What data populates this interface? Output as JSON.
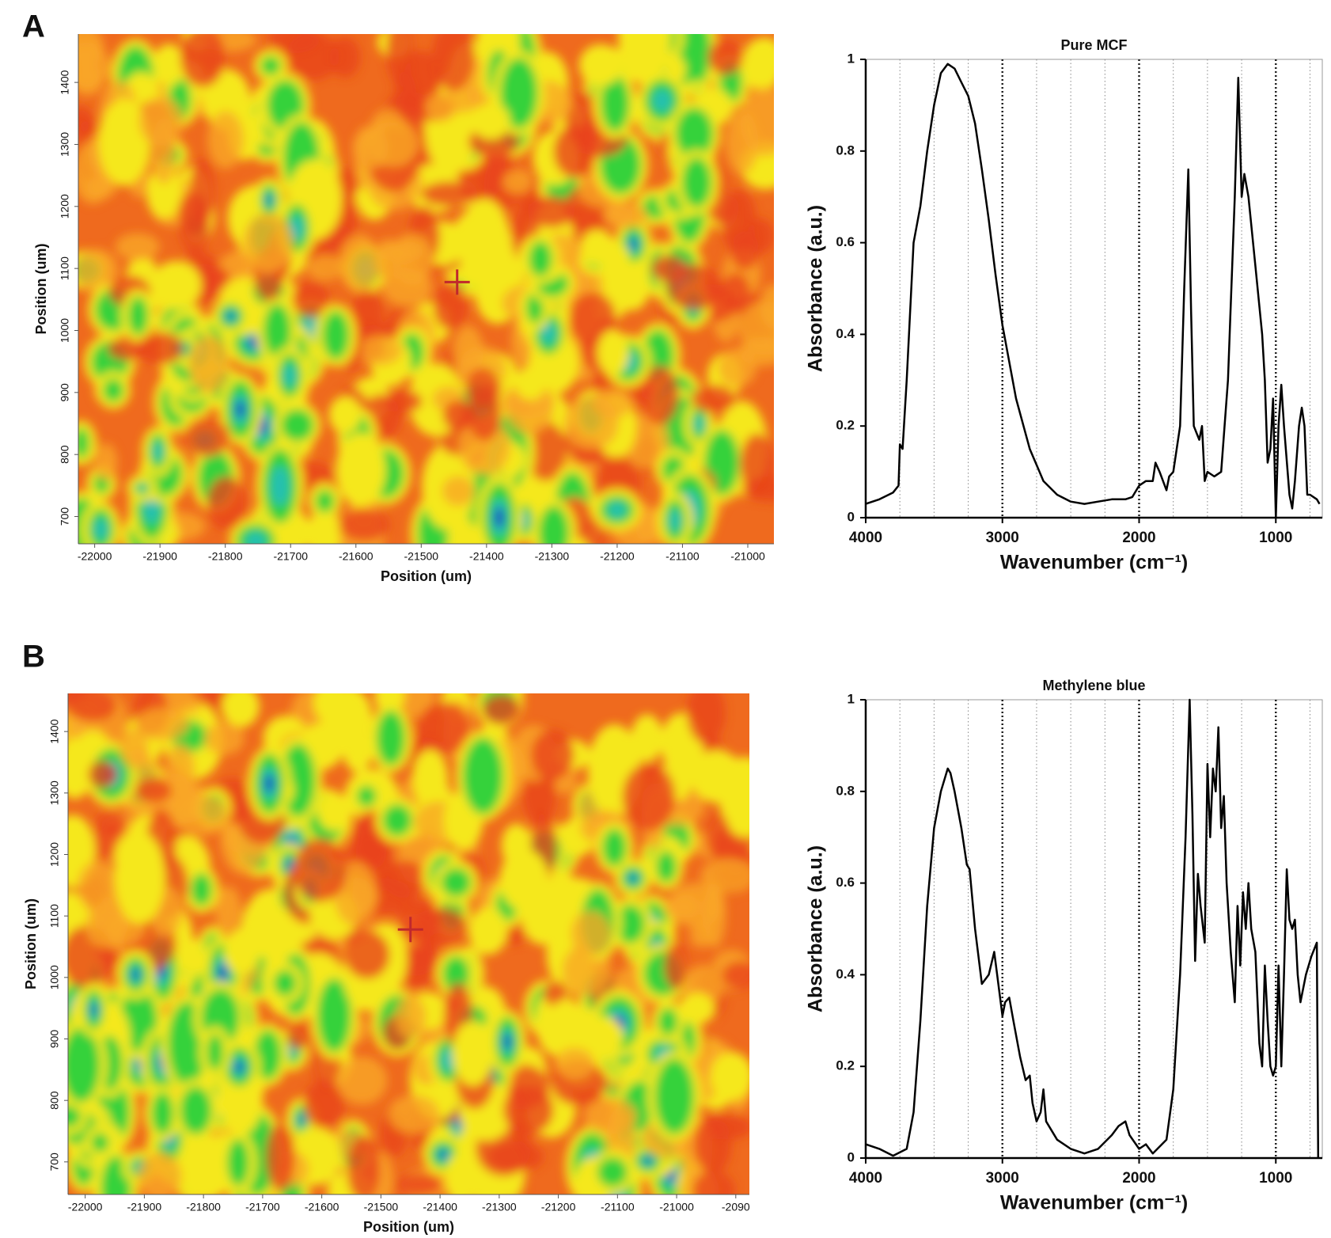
{
  "chart_data": [
    {
      "type": "heatmap",
      "panel": "A",
      "xlabel": "Position (um)",
      "ylabel": "Position (um)",
      "xlim": [
        -22025,
        -20960
      ],
      "ylim": [
        656,
        1478
      ],
      "xticks": [
        -22000,
        -21900,
        -21800,
        -21700,
        -21600,
        -21500,
        -21400,
        -21300,
        -21200,
        -21100,
        -21000
      ],
      "yticks": [
        700,
        800,
        900,
        1000,
        1100,
        1200,
        1300,
        1400
      ],
      "marker": {
        "x": -21445,
        "y": 1078,
        "color": "#c0282d"
      }
    },
    {
      "type": "line",
      "title": "Pure MCF",
      "xlabel": "Wavenumber (cm⁻¹)",
      "ylabel": "Absorbance (a.u.)",
      "color": "#000000",
      "grid": true,
      "xlim": [
        4000,
        660
      ],
      "ylim": [
        0,
        1
      ],
      "xticks": [
        4000,
        3000,
        2000,
        1000
      ],
      "yticks": [
        0,
        0.2,
        0.4,
        0.6,
        0.8,
        1
      ],
      "xminor": [
        3750,
        3500,
        3250,
        2750,
        2500,
        2250,
        1750,
        1500,
        1250,
        750
      ],
      "x": [
        4000,
        3900,
        3800,
        3760,
        3750,
        3730,
        3700,
        3650,
        3600,
        3550,
        3500,
        3450,
        3400,
        3350,
        3300,
        3250,
        3200,
        3150,
        3100,
        3050,
        3000,
        2900,
        2800,
        2700,
        2600,
        2500,
        2400,
        2300,
        2200,
        2100,
        2050,
        2000,
        1950,
        1900,
        1880,
        1850,
        1800,
        1780,
        1750,
        1700,
        1670,
        1640,
        1620,
        1600,
        1560,
        1540,
        1520,
        1500,
        1450,
        1400,
        1350,
        1300,
        1275,
        1250,
        1230,
        1200,
        1150,
        1100,
        1080,
        1060,
        1040,
        1020,
        1000,
        980,
        960,
        940,
        900,
        880,
        860,
        830,
        810,
        790,
        770,
        750,
        700,
        680
      ],
      "values": [
        0.03,
        0.04,
        0.055,
        0.07,
        0.16,
        0.15,
        0.3,
        0.6,
        0.68,
        0.8,
        0.9,
        0.97,
        0.99,
        0.98,
        0.95,
        0.92,
        0.86,
        0.76,
        0.65,
        0.53,
        0.42,
        0.26,
        0.15,
        0.08,
        0.05,
        0.035,
        0.03,
        0.035,
        0.04,
        0.04,
        0.045,
        0.07,
        0.08,
        0.08,
        0.12,
        0.1,
        0.06,
        0.09,
        0.1,
        0.2,
        0.5,
        0.76,
        0.45,
        0.2,
        0.17,
        0.2,
        0.08,
        0.1,
        0.09,
        0.1,
        0.3,
        0.7,
        0.96,
        0.7,
        0.75,
        0.7,
        0.55,
        0.4,
        0.3,
        0.12,
        0.15,
        0.26,
        0.0,
        0.2,
        0.29,
        0.2,
        0.05,
        0.02,
        0.08,
        0.2,
        0.24,
        0.2,
        0.05,
        0.05,
        0.04,
        0.03
      ]
    },
    {
      "type": "heatmap",
      "panel": "B",
      "xlabel": "Position (um)",
      "ylabel": "Position (um)",
      "xlim": [
        -22029,
        -20877
      ],
      "ylim": [
        647,
        1462
      ],
      "xticks": [
        -22000,
        -21900,
        -21800,
        -21700,
        -21600,
        -21500,
        -21400,
        -21300,
        -21200,
        -21100,
        -21000,
        {
          "value": -20900,
          "label": "-2090"
        }
      ],
      "yticks": [
        700,
        800,
        900,
        1000,
        1100,
        1200,
        1300,
        1400
      ],
      "marker": {
        "x": -21450,
        "y": 1078,
        "color": "#c0282d"
      }
    },
    {
      "type": "line",
      "title": "Methylene blue",
      "xlabel": "Wavenumber (cm⁻¹)",
      "ylabel": "Absorbance (a.u.)",
      "color": "#000000",
      "grid": true,
      "xlim": [
        4000,
        660
      ],
      "ylim": [
        0,
        1
      ],
      "xticks": [
        4000,
        3000,
        2000,
        1000
      ],
      "yticks": [
        0,
        0.2,
        0.4,
        0.6,
        0.8,
        1
      ],
      "xminor": [
        3750,
        3500,
        3250,
        2750,
        2500,
        2250,
        1750,
        1500,
        1250,
        750
      ],
      "x": [
        4000,
        3900,
        3800,
        3700,
        3650,
        3600,
        3550,
        3500,
        3450,
        3400,
        3380,
        3350,
        3300,
        3260,
        3240,
        3200,
        3150,
        3100,
        3060,
        3030,
        3000,
        2980,
        2950,
        2920,
        2870,
        2830,
        2800,
        2780,
        2750,
        2720,
        2700,
        2680,
        2600,
        2500,
        2400,
        2300,
        2200,
        2150,
        2100,
        2070,
        2000,
        1950,
        1900,
        1800,
        1750,
        1700,
        1660,
        1630,
        1610,
        1590,
        1570,
        1550,
        1520,
        1500,
        1480,
        1460,
        1440,
        1420,
        1400,
        1380,
        1360,
        1330,
        1300,
        1280,
        1260,
        1240,
        1220,
        1200,
        1180,
        1150,
        1120,
        1100,
        1080,
        1060,
        1040,
        1020,
        1000,
        980,
        960,
        940,
        920,
        900,
        880,
        860,
        840,
        820,
        780,
        740,
        700,
        690
      ],
      "values": [
        0.03,
        0.02,
        0.005,
        0.02,
        0.1,
        0.3,
        0.55,
        0.72,
        0.8,
        0.85,
        0.84,
        0.8,
        0.72,
        0.64,
        0.63,
        0.5,
        0.38,
        0.4,
        0.45,
        0.38,
        0.31,
        0.34,
        0.35,
        0.3,
        0.22,
        0.17,
        0.18,
        0.12,
        0.08,
        0.1,
        0.15,
        0.08,
        0.04,
        0.02,
        0.01,
        0.02,
        0.05,
        0.07,
        0.08,
        0.05,
        0.02,
        0.03,
        0.01,
        0.04,
        0.15,
        0.4,
        0.7,
        1.0,
        0.75,
        0.43,
        0.62,
        0.55,
        0.47,
        0.86,
        0.7,
        0.85,
        0.8,
        0.94,
        0.72,
        0.79,
        0.6,
        0.45,
        0.34,
        0.55,
        0.42,
        0.58,
        0.5,
        0.6,
        0.5,
        0.45,
        0.25,
        0.2,
        0.42,
        0.3,
        0.2,
        0.18,
        0.2,
        0.42,
        0.2,
        0.4,
        0.63,
        0.52,
        0.5,
        0.52,
        0.4,
        0.34,
        0.4,
        0.44,
        0.47,
        0.0
      ]
    }
  ]
}
